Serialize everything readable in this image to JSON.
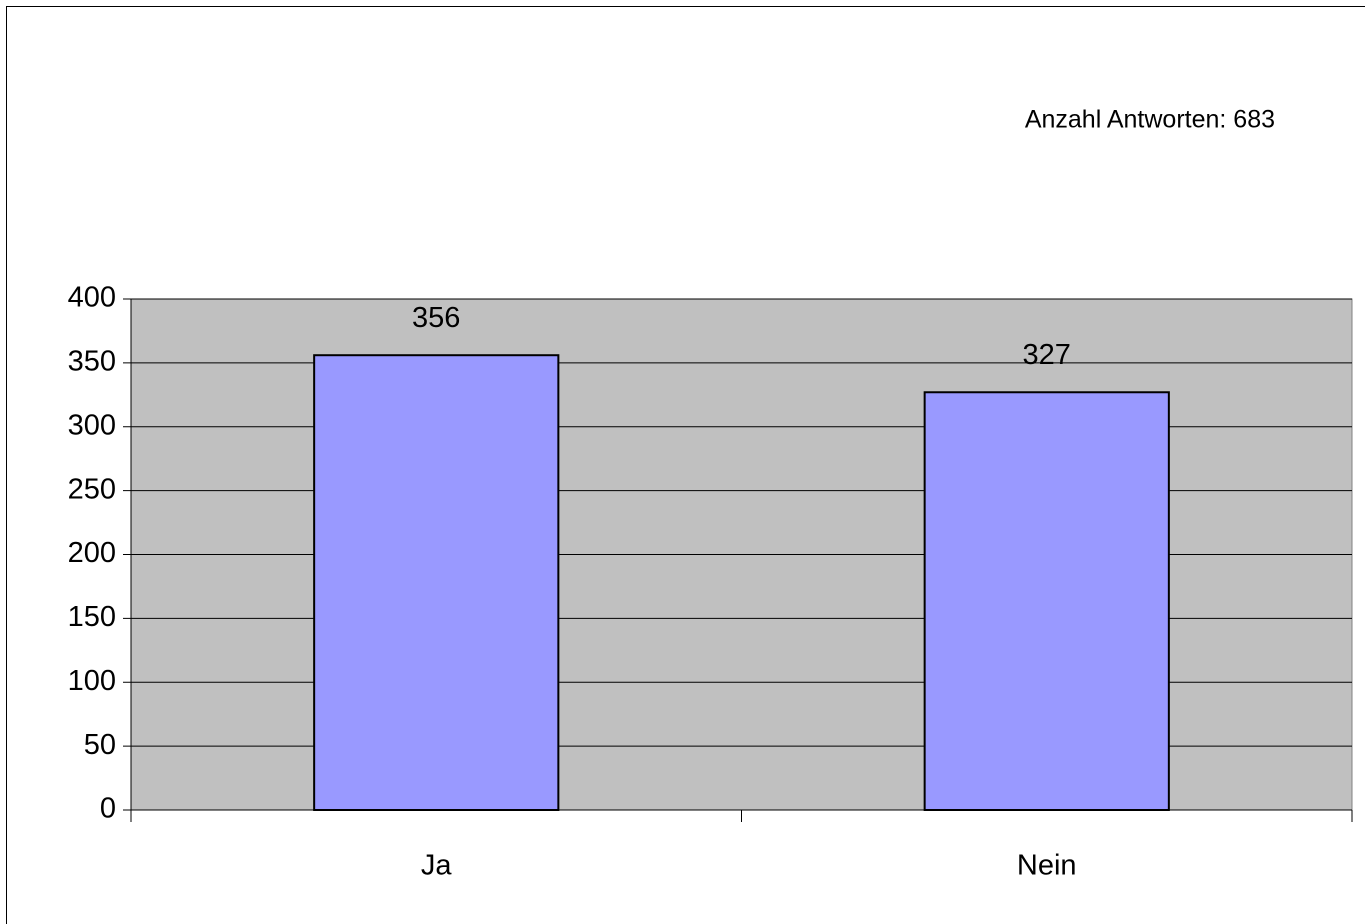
{
  "chart_data": {
    "type": "bar",
    "annotation": "Anzahl Antworten: 683",
    "categories": [
      "Ja",
      "Nein"
    ],
    "values": [
      356,
      327
    ],
    "color": "#9999ff",
    "plot_background": "#c0c0c0",
    "ylim": [
      0,
      400
    ],
    "yticks": [
      0,
      50,
      100,
      150,
      200,
      250,
      300,
      350,
      400
    ],
    "grid": true
  }
}
